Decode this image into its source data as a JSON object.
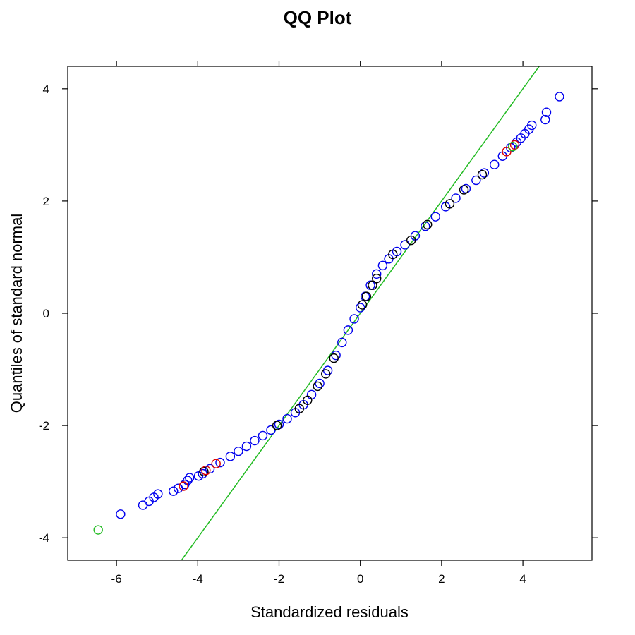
{
  "chart_data": {
    "type": "scatter",
    "title": "QQ Plot",
    "xlabel": "Standardized residuals",
    "ylabel": "Quantiles of standard normal",
    "xlim": [
      -7.2,
      5.7
    ],
    "ylim": [
      -4.4,
      4.4
    ],
    "xticks": [
      -6,
      -4,
      -2,
      0,
      2,
      4
    ],
    "yticks": [
      -4,
      -2,
      0,
      2,
      4
    ],
    "xtick_labels": [
      "-6",
      "-4",
      "-2",
      "0",
      "2",
      "4"
    ],
    "ytick_labels": [
      "-4",
      "-2",
      "0",
      "2",
      "4"
    ],
    "grid": false,
    "legend": "none",
    "marker": "open-circle",
    "reference_line": {
      "color": "#22bb22",
      "points": [
        [
          -4.4,
          -4.4
        ],
        [
          4.4,
          4.4
        ]
      ]
    },
    "series": [
      {
        "color": "#0000ee",
        "points": [
          [
            -5.9,
            -3.58
          ],
          [
            -5.35,
            -3.42
          ],
          [
            -5.2,
            -3.35
          ],
          [
            -5.08,
            -3.28
          ],
          [
            -4.98,
            -3.22
          ],
          [
            -4.6,
            -3.17
          ],
          [
            -4.48,
            -3.12
          ],
          [
            -4.32,
            -3.05
          ],
          [
            -4.25,
            -2.98
          ],
          [
            -4.2,
            -2.93
          ],
          [
            -3.98,
            -2.9
          ],
          [
            -3.88,
            -2.86
          ],
          [
            -3.7,
            -2.77
          ],
          [
            -3.45,
            -2.66
          ],
          [
            -3.2,
            -2.55
          ],
          [
            -3.0,
            -2.46
          ],
          [
            -2.8,
            -2.37
          ],
          [
            -2.6,
            -2.27
          ],
          [
            -2.4,
            -2.18
          ],
          [
            -2.2,
            -2.08
          ],
          [
            -2.0,
            -1.98
          ],
          [
            -1.8,
            -1.88
          ],
          [
            -1.6,
            -1.77
          ],
          [
            -1.4,
            -1.63
          ],
          [
            -1.2,
            -1.45
          ],
          [
            -1.0,
            -1.25
          ],
          [
            -0.8,
            -1.02
          ],
          [
            -0.6,
            -0.75
          ],
          [
            -0.45,
            -0.52
          ],
          [
            -0.3,
            -0.3
          ],
          [
            -0.15,
            -0.1
          ],
          [
            0.0,
            0.1
          ],
          [
            0.12,
            0.3
          ],
          [
            0.25,
            0.5
          ],
          [
            0.4,
            0.7
          ],
          [
            0.55,
            0.85
          ],
          [
            0.7,
            0.97
          ],
          [
            0.9,
            1.1
          ],
          [
            1.1,
            1.22
          ],
          [
            1.35,
            1.38
          ],
          [
            1.6,
            1.55
          ],
          [
            1.85,
            1.72
          ],
          [
            2.1,
            1.9
          ],
          [
            2.35,
            2.05
          ],
          [
            2.6,
            2.22
          ],
          [
            2.85,
            2.37
          ],
          [
            3.05,
            2.5
          ],
          [
            3.3,
            2.65
          ],
          [
            3.5,
            2.8
          ],
          [
            3.7,
            2.95
          ],
          [
            3.85,
            3.05
          ],
          [
            3.95,
            3.12
          ],
          [
            4.05,
            3.2
          ],
          [
            4.15,
            3.28
          ],
          [
            4.22,
            3.35
          ],
          [
            4.55,
            3.45
          ],
          [
            4.58,
            3.58
          ],
          [
            4.9,
            3.86
          ]
        ]
      },
      {
        "color": "#000000",
        "points": [
          [
            -3.85,
            -2.82
          ],
          [
            -2.05,
            -2.0
          ],
          [
            -1.5,
            -1.7
          ],
          [
            -1.3,
            -1.55
          ],
          [
            -1.05,
            -1.3
          ],
          [
            -0.85,
            -1.08
          ],
          [
            -0.65,
            -0.8
          ],
          [
            0.05,
            0.15
          ],
          [
            0.15,
            0.3
          ],
          [
            0.3,
            0.5
          ],
          [
            0.4,
            0.62
          ],
          [
            0.8,
            1.05
          ],
          [
            1.25,
            1.3
          ],
          [
            1.65,
            1.58
          ],
          [
            2.2,
            1.95
          ],
          [
            2.55,
            2.2
          ],
          [
            3.0,
            2.47
          ]
        ]
      },
      {
        "color": "#dd0000",
        "points": [
          [
            -4.35,
            -3.08
          ],
          [
            -3.8,
            -2.8
          ],
          [
            -3.55,
            -2.68
          ],
          [
            3.6,
            2.88
          ],
          [
            3.8,
            3.0
          ]
        ]
      },
      {
        "color": "#22bb22",
        "points": [
          [
            -6.45,
            -3.86
          ],
          [
            3.75,
            2.97
          ]
        ]
      }
    ]
  }
}
